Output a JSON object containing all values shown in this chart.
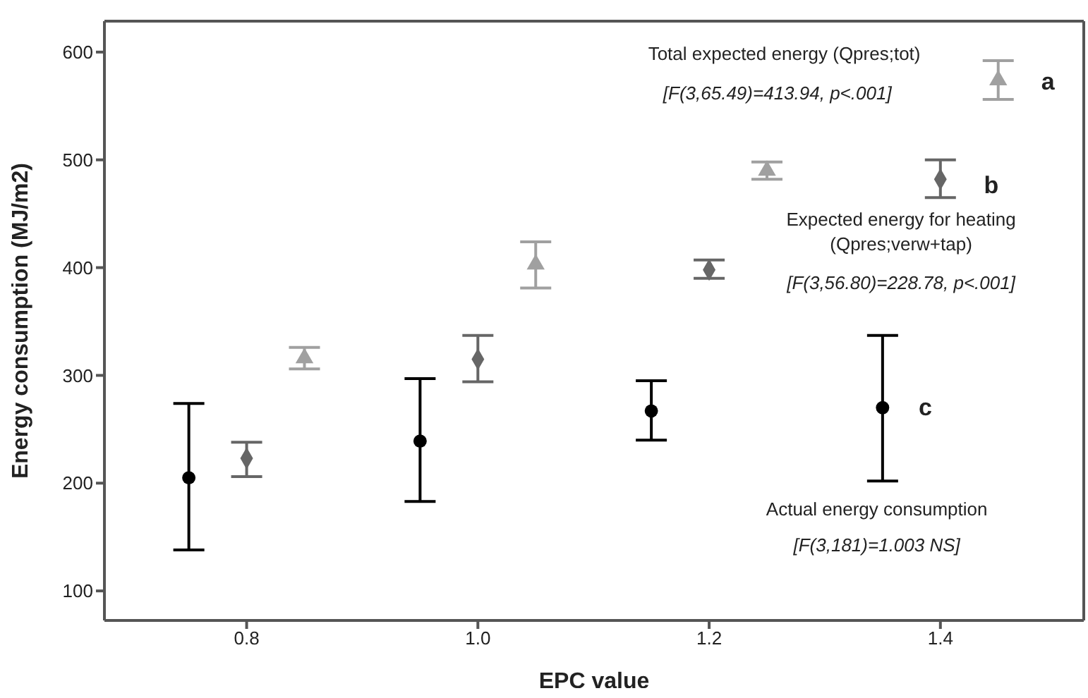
{
  "chart_data": {
    "type": "scatter",
    "xlabel": "EPC value",
    "ylabel": "Energy consumption (MJ/m2)",
    "xlim": [
      0.677,
      1.524
    ],
    "xticks": [
      {
        "value": 0.8,
        "label": "0.8"
      },
      {
        "value": 1.0,
        "label": "1.0"
      },
      {
        "value": 1.2,
        "label": "1.2"
      },
      {
        "value": 1.4,
        "label": "1.4"
      }
    ],
    "ylim": [
      72.6,
      628.7
    ],
    "yticks": [
      100,
      200,
      300,
      400,
      500,
      600
    ],
    "series": [
      {
        "color": "#000000",
        "marker": "circle",
        "x": [
          0.75,
          0.95,
          1.15,
          1.35
        ],
        "values": [
          205,
          239,
          267,
          270
        ],
        "errors": [
          [
            138,
            274
          ],
          [
            183,
            297
          ],
          [
            240,
            295
          ],
          [
            202,
            337
          ]
        ]
      },
      {
        "color": "#666666",
        "marker": "diamond",
        "x": [
          0.8,
          1.0,
          1.2,
          1.4
        ],
        "values": [
          223,
          315,
          398,
          482
        ],
        "errors": [
          [
            206,
            238
          ],
          [
            294,
            337
          ],
          [
            390,
            407
          ],
          [
            465,
            500
          ]
        ]
      },
      {
        "color": "#a0a0a0",
        "marker": "triangle",
        "x": [
          0.85,
          1.05,
          1.25,
          1.45
        ],
        "values": [
          316,
          403,
          490,
          574
        ],
        "errors": [
          [
            306,
            326
          ],
          [
            381,
            424
          ],
          [
            482,
            498
          ],
          [
            556,
            592
          ]
        ]
      }
    ],
    "annotations": [
      "Total expected energy (Qpres;tot)",
      "[F(3,65.49)=413.94, p<.001]",
      "a",
      "b",
      "Expected energy for heating",
      "(Qpres;verw+tap)",
      "[F(3,56.80)=228.78, p<.001]",
      "c",
      "Actual energy consumption",
      "[F(3,181)=1.003 NS]"
    ]
  }
}
